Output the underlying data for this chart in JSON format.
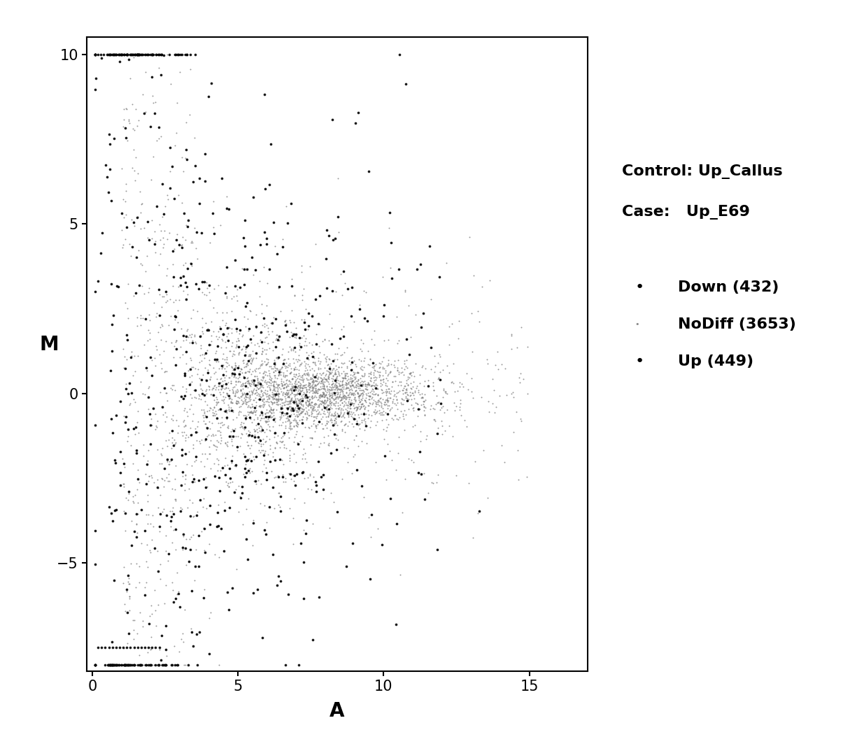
{
  "title": "",
  "xlabel": "A",
  "ylabel": "M",
  "xlim": [
    -0.2,
    17
  ],
  "ylim": [
    -8.2,
    10.5
  ],
  "xticks": [
    0,
    5,
    10,
    15
  ],
  "yticks": [
    -5,
    0,
    5,
    10
  ],
  "legend_title_line1": "Control: Up_Callus",
  "legend_title_line2": "Case:   Up_E69",
  "down_count": 432,
  "nodiff_count": 3653,
  "up_count": 449,
  "down_color": "#000000",
  "nodiff_color": "#777777",
  "up_color": "#000000",
  "down_size": 7,
  "nodiff_size": 2,
  "up_size": 7,
  "background_color": "#ffffff",
  "random_seed": 42,
  "line_m_up": 10.0,
  "line_m_down": -7.5,
  "line_a_start": 0.2,
  "line_a_end": 2.3
}
